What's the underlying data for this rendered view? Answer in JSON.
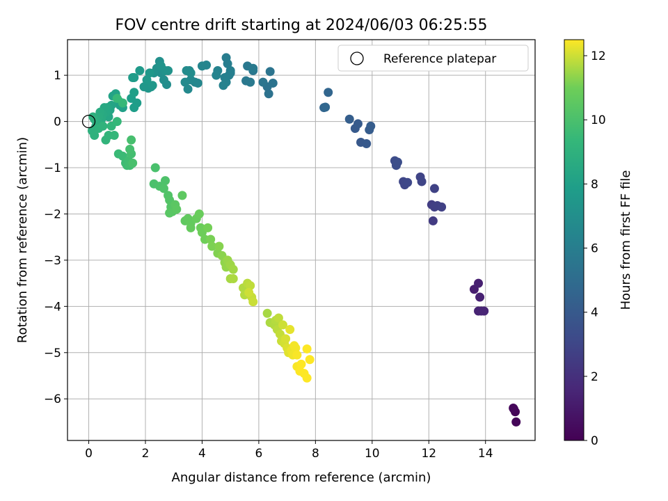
{
  "chart_data": {
    "type": "scatter",
    "title": "FOV centre drift starting at 2024/06/03 06:25:55",
    "xlabel": "Angular distance from reference (arcmin)",
    "ylabel": "Rotation from reference (arcmin)",
    "xlim": [
      -0.75,
      15.75
    ],
    "ylim": [
      -6.9,
      1.77
    ],
    "xticks": [
      0,
      2,
      4,
      6,
      8,
      10,
      12,
      14
    ],
    "yticks": [
      -6,
      -5,
      -4,
      -3,
      -2,
      -1,
      0,
      1
    ],
    "grid": true,
    "legend": {
      "position": "top-right",
      "label": "Reference platepar"
    },
    "reference_point": {
      "x": 0,
      "y": 0
    },
    "colorbar": {
      "label": "Hours from first FF file",
      "min": 0,
      "max": 12.5,
      "ticks": [
        0,
        2,
        4,
        6,
        8,
        10,
        12
      ],
      "colormap": "viridis"
    },
    "series": [
      {
        "points": [
          [
            15.0,
            -6.22,
            0.1
          ],
          [
            15.05,
            -6.28,
            0.15
          ],
          [
            15.08,
            -6.5,
            0.2
          ],
          [
            14.98,
            -6.2,
            0.25
          ],
          [
            13.6,
            -3.63,
            1.2
          ],
          [
            13.75,
            -3.5,
            1.3
          ],
          [
            13.8,
            -3.8,
            1.35
          ],
          [
            13.75,
            -4.1,
            1.4
          ],
          [
            13.85,
            -4.1,
            1.45
          ],
          [
            13.95,
            -4.1,
            1.5
          ],
          [
            12.15,
            -2.15,
            2.5
          ],
          [
            12.1,
            -1.8,
            2.6
          ],
          [
            12.2,
            -1.85,
            2.65
          ],
          [
            12.3,
            -1.82,
            2.7
          ],
          [
            12.45,
            -1.85,
            2.75
          ],
          [
            12.2,
            -1.45,
            2.8
          ],
          [
            11.7,
            -1.2,
            2.9
          ],
          [
            11.75,
            -1.3,
            2.95
          ],
          [
            11.1,
            -1.3,
            3.0
          ],
          [
            11.15,
            -1.37,
            3.05
          ],
          [
            11.25,
            -1.32,
            3.1
          ],
          [
            10.8,
            -0.85,
            3.3
          ],
          [
            10.85,
            -0.95,
            3.35
          ],
          [
            10.9,
            -0.88,
            3.4
          ],
          [
            9.6,
            -0.45,
            3.9
          ],
          [
            9.8,
            -0.48,
            3.95
          ],
          [
            9.4,
            -0.15,
            4.0
          ],
          [
            9.5,
            -0.05,
            4.05
          ],
          [
            9.9,
            -0.18,
            4.1
          ],
          [
            9.95,
            -0.1,
            4.15
          ],
          [
            9.2,
            0.05,
            4.2
          ],
          [
            8.3,
            0.3,
            4.6
          ],
          [
            8.45,
            0.63,
            4.65
          ],
          [
            8.35,
            0.31,
            4.7
          ],
          [
            6.35,
            0.6,
            5.3
          ],
          [
            6.3,
            0.75,
            5.35
          ],
          [
            6.5,
            0.83,
            5.4
          ],
          [
            6.4,
            1.08,
            5.45
          ],
          [
            6.15,
            0.85,
            5.5
          ],
          [
            5.8,
            1.1,
            5.6
          ],
          [
            5.6,
            1.2,
            5.65
          ],
          [
            5.55,
            0.88,
            5.7
          ],
          [
            5.7,
            0.85,
            5.75
          ],
          [
            5.8,
            1.15,
            5.8
          ],
          [
            5.0,
            1.05,
            5.9
          ],
          [
            4.85,
            1.38,
            5.95
          ],
          [
            4.9,
            1.25,
            6.0
          ],
          [
            5.0,
            1.1,
            6.05
          ],
          [
            4.95,
            1.0,
            6.1
          ],
          [
            4.8,
            0.95,
            6.15
          ],
          [
            4.85,
            0.85,
            6.2
          ],
          [
            4.75,
            0.78,
            6.25
          ],
          [
            4.55,
            1.1,
            6.3
          ],
          [
            4.5,
            1.0,
            6.35
          ],
          [
            4.15,
            1.22,
            6.4
          ],
          [
            4.0,
            1.2,
            6.45
          ],
          [
            3.75,
            0.85,
            6.5
          ],
          [
            3.85,
            0.83,
            6.55
          ],
          [
            3.6,
            0.9,
            6.6
          ],
          [
            3.5,
            0.7,
            6.65
          ],
          [
            3.4,
            0.85,
            6.7
          ],
          [
            3.55,
            1.1,
            6.75
          ],
          [
            3.45,
            1.1,
            6.8
          ],
          [
            3.6,
            1.05,
            6.85
          ],
          [
            2.75,
            0.8,
            6.9
          ],
          [
            2.65,
            0.9,
            6.95
          ],
          [
            2.55,
            1.05,
            7.0
          ],
          [
            2.5,
            1.3,
            7.05
          ],
          [
            2.4,
            1.15,
            7.1
          ],
          [
            2.3,
            1.05,
            7.15
          ],
          [
            2.7,
            1.1,
            7.2
          ],
          [
            2.8,
            1.1,
            7.25
          ],
          [
            2.55,
            1.2,
            7.3
          ],
          [
            2.2,
            0.75,
            7.35
          ],
          [
            2.1,
            0.72,
            7.4
          ],
          [
            1.95,
            0.75,
            7.45
          ],
          [
            2.25,
            0.78,
            7.5
          ],
          [
            2.15,
            1.05,
            7.55
          ],
          [
            2.05,
            0.9,
            7.6
          ],
          [
            1.8,
            1.1,
            7.65
          ],
          [
            1.6,
            0.95,
            7.7
          ],
          [
            1.55,
            0.95,
            7.75
          ],
          [
            1.7,
            0.4,
            7.8
          ],
          [
            1.6,
            0.3,
            7.85
          ],
          [
            1.5,
            0.5,
            7.9
          ],
          [
            1.6,
            0.63,
            7.95
          ],
          [
            1.2,
            0.3,
            8.0
          ],
          [
            1.1,
            0.35,
            8.05
          ],
          [
            1.05,
            0.45,
            8.1
          ],
          [
            0.95,
            0.6,
            8.15
          ],
          [
            0.85,
            0.55,
            8.2
          ],
          [
            0.8,
            0.35,
            8.25
          ],
          [
            0.75,
            0.25,
            8.3
          ],
          [
            0.7,
            0.1,
            8.35
          ],
          [
            0.65,
            0.3,
            8.4
          ],
          [
            0.6,
            0.2,
            8.45
          ],
          [
            0.55,
            0.3,
            8.5
          ],
          [
            0.5,
            0.15,
            8.55
          ],
          [
            0.45,
            0.05,
            8.6
          ],
          [
            0.4,
            0.2,
            8.65
          ],
          [
            0.35,
            0.1,
            8.7
          ],
          [
            0.3,
            0.0,
            8.75
          ],
          [
            0.25,
            -0.1,
            8.8
          ],
          [
            0.2,
            0.05,
            8.85
          ],
          [
            0.15,
            0.1,
            8.9
          ],
          [
            0.12,
            -0.2,
            8.95
          ],
          [
            0.2,
            -0.3,
            9.0
          ],
          [
            0.35,
            -0.15,
            9.05
          ],
          [
            0.5,
            -0.1,
            9.1
          ],
          [
            0.6,
            -0.4,
            9.15
          ],
          [
            0.7,
            -0.3,
            9.2
          ],
          [
            0.8,
            -0.1,
            9.25
          ],
          [
            0.9,
            -0.3,
            9.3
          ],
          [
            1.0,
            0.0,
            9.35
          ],
          [
            1.2,
            0.4,
            9.4
          ],
          [
            1.0,
            0.5,
            9.45
          ],
          [
            1.05,
            -0.7,
            9.5
          ],
          [
            1.2,
            -0.75,
            9.55
          ],
          [
            1.3,
            -0.9,
            9.6
          ],
          [
            1.35,
            -0.95,
            9.65
          ],
          [
            1.4,
            -0.85,
            9.7
          ],
          [
            1.45,
            -0.95,
            9.75
          ],
          [
            1.5,
            -0.7,
            9.8
          ],
          [
            1.45,
            -0.6,
            9.85
          ],
          [
            1.5,
            -0.4,
            9.9
          ],
          [
            1.55,
            -0.9,
            9.95
          ],
          [
            2.35,
            -1.0,
            9.98
          ],
          [
            2.3,
            -1.35,
            10.0
          ],
          [
            2.5,
            -1.4,
            10.05
          ],
          [
            2.7,
            -1.28,
            10.1
          ],
          [
            2.65,
            -1.45,
            10.15
          ],
          [
            2.8,
            -1.6,
            10.2
          ],
          [
            2.85,
            -1.7,
            10.25
          ],
          [
            2.9,
            -1.85,
            10.3
          ],
          [
            2.95,
            -1.95,
            10.35
          ],
          [
            2.85,
            -1.98,
            10.4
          ],
          [
            3.05,
            -1.8,
            10.45
          ],
          [
            3.1,
            -1.9,
            10.5
          ],
          [
            3.3,
            -1.6,
            10.55
          ],
          [
            3.4,
            -2.15,
            10.6
          ],
          [
            3.5,
            -2.1,
            10.65
          ],
          [
            3.6,
            -2.2,
            10.7
          ],
          [
            3.6,
            -2.3,
            10.75
          ],
          [
            3.8,
            -2.1,
            10.8
          ],
          [
            3.9,
            -2.0,
            10.85
          ],
          [
            3.95,
            -2.3,
            10.9
          ],
          [
            4.0,
            -2.4,
            10.95
          ],
          [
            4.1,
            -2.55,
            11.0
          ],
          [
            4.2,
            -2.3,
            11.05
          ],
          [
            4.3,
            -2.55,
            11.1
          ],
          [
            4.35,
            -2.7,
            11.15
          ],
          [
            4.55,
            -2.85,
            11.2
          ],
          [
            4.6,
            -2.7,
            11.25
          ],
          [
            4.7,
            -2.9,
            11.3
          ],
          [
            4.8,
            -3.05,
            11.35
          ],
          [
            4.85,
            -3.15,
            11.4
          ],
          [
            4.9,
            -3.0,
            11.45
          ],
          [
            5.0,
            -3.1,
            11.5
          ],
          [
            5.1,
            -3.2,
            11.55
          ],
          [
            5.0,
            -3.4,
            11.6
          ],
          [
            5.1,
            -3.4,
            11.65
          ],
          [
            5.45,
            -3.6,
            11.7
          ],
          [
            5.5,
            -3.75,
            11.75
          ],
          [
            5.6,
            -3.5,
            11.8
          ],
          [
            5.7,
            -3.55,
            11.85
          ],
          [
            5.75,
            -3.8,
            11.9
          ],
          [
            5.8,
            -3.9,
            11.95
          ],
          [
            5.65,
            -3.7,
            12.0
          ],
          [
            6.3,
            -4.15,
            11.6
          ],
          [
            6.4,
            -4.35,
            11.65
          ],
          [
            6.55,
            -4.4,
            11.7
          ],
          [
            6.6,
            -4.3,
            11.75
          ],
          [
            6.65,
            -4.5,
            11.8
          ],
          [
            6.7,
            -4.25,
            11.85
          ],
          [
            6.75,
            -4.6,
            11.9
          ],
          [
            6.8,
            -4.75,
            11.95
          ],
          [
            6.85,
            -4.4,
            12.0
          ],
          [
            6.9,
            -4.8,
            12.05
          ],
          [
            6.95,
            -4.7,
            12.1
          ],
          [
            7.0,
            -4.9,
            12.15
          ],
          [
            7.05,
            -5.0,
            12.2
          ],
          [
            7.1,
            -4.5,
            12.25
          ],
          [
            7.15,
            -4.95,
            12.3
          ],
          [
            7.2,
            -5.05,
            12.35
          ],
          [
            7.3,
            -4.9,
            12.4
          ],
          [
            7.35,
            -5.3,
            12.45
          ],
          [
            7.45,
            -5.4,
            12.5
          ],
          [
            7.5,
            -5.25,
            12.5
          ],
          [
            7.6,
            -5.45,
            12.5
          ],
          [
            7.7,
            -5.55,
            12.5
          ],
          [
            7.7,
            -4.92,
            12.5
          ],
          [
            7.8,
            -5.15,
            12.5
          ],
          [
            7.35,
            -5.05,
            12.45
          ],
          [
            7.25,
            -4.85,
            12.4
          ]
        ]
      }
    ]
  }
}
